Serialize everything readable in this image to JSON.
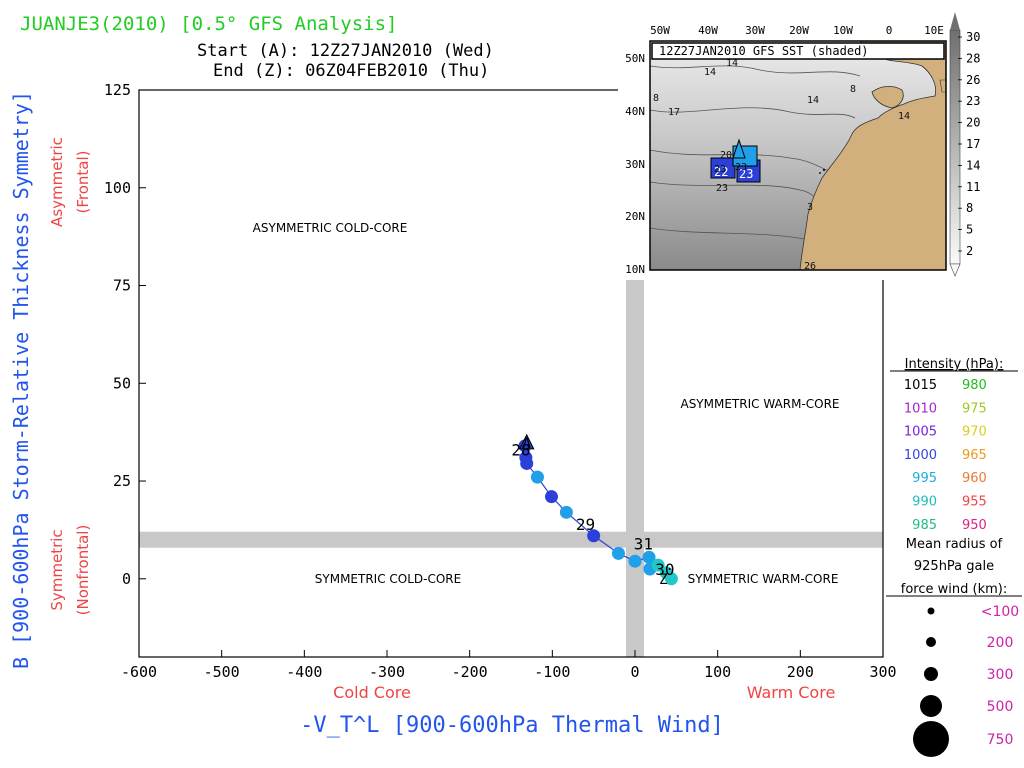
{
  "header": {
    "title": "JUANJE3(2010) [0.5° GFS Analysis]",
    "start_label": "Start (A): 12Z27JAN2010 (Wed)",
    "end_label": "End (Z): 06Z04FEB2010 (Thu)"
  },
  "colors": {
    "title_green": "#22cc22",
    "axis_blue": "#2255ee",
    "label_red": "#ee4444",
    "legend_magenta": "#cc22aa",
    "band_gray": "#c8c8c8",
    "land_tan": "#d2b07e"
  },
  "chart_data": {
    "type": "scatter",
    "title": "JUANJE3(2010) [0.5° GFS Analysis]",
    "xlabel": "-V_T^L [900-600hPa Thermal Wind]",
    "ylabel": "B [900-600hPa Storm-Relative Thickness Symmetry]",
    "xlim": [
      -600,
      300
    ],
    "ylim": [
      -20,
      125
    ],
    "xticks": [
      -600,
      -500,
      -400,
      -300,
      -200,
      -100,
      0,
      100,
      200,
      300
    ],
    "yticks": [
      0,
      25,
      50,
      75,
      100,
      125
    ],
    "x_sub_labels": {
      "left": "Cold Core",
      "right": "Warm Core"
    },
    "y_sub_labels": {
      "upper": [
        "Asymmetric",
        "(Frontal)"
      ],
      "lower": [
        "Symmetric",
        "(Nonfrontal)"
      ]
    },
    "quadrants": {
      "upper_left": "ASYMMETRIC COLD-CORE",
      "upper_right": "ASYMMETRIC WARM-CORE",
      "lower_left": "SYMMETRIC COLD-CORE",
      "lower_right": "SYMMETRIC WARM-CORE"
    },
    "vertical_band_x": 0,
    "horizontal_band_y": 10,
    "grid": false,
    "series": [
      {
        "points": [
          {
            "x": -133,
            "y": 34,
            "color": "#2a40d8"
          },
          {
            "x": -132,
            "y": 31,
            "color": "#2a40d8"
          },
          {
            "x": -131,
            "y": 29.5,
            "color": "#2a40d8"
          },
          {
            "x": -118,
            "y": 26,
            "color": "#1fa0e8"
          },
          {
            "x": -101,
            "y": 21,
            "color": "#2a40d8"
          },
          {
            "x": -83,
            "y": 17,
            "color": "#1fa0e8"
          },
          {
            "x": -50,
            "y": 11,
            "color": "#2a40d8"
          },
          {
            "x": -20,
            "y": 6.5,
            "color": "#1fa0e8"
          },
          {
            "x": 0,
            "y": 4.5,
            "color": "#1fa0e8"
          },
          {
            "x": 17,
            "y": 5.5,
            "color": "#1fa0e8"
          },
          {
            "x": 18,
            "y": 2.5,
            "color": "#1fa0e8"
          },
          {
            "x": 28,
            "y": 3.5,
            "color": "#22c8c8"
          },
          {
            "x": 38,
            "y": 1.5,
            "color": "#22c8c8"
          },
          {
            "x": 44,
            "y": 0,
            "color": "#22c8c8"
          }
        ]
      }
    ],
    "annotations": [
      {
        "text": "A",
        "x": -131,
        "y": 34
      },
      {
        "text": "Z",
        "x": 44,
        "y": 0
      },
      {
        "text": "28",
        "x": -133,
        "y": 31
      },
      {
        "text": "29",
        "x": -55,
        "y": 12
      },
      {
        "text": "31",
        "x": 15,
        "y": 7
      },
      {
        "text": "30",
        "x": 41,
        "y": 0.5
      }
    ]
  },
  "inset_map": {
    "title": "12Z27JAN2010 GFS SST (shaded)",
    "lon_labels": [
      "50W",
      "40W",
      "30W",
      "20W",
      "10W",
      "0",
      "10E"
    ],
    "lat_labels": [
      "50N",
      "40N",
      "30N",
      "20N",
      "10N"
    ],
    "contour_labels": [
      "14",
      "14",
      "8",
      "17",
      "14",
      "8",
      "14",
      "20",
      "23",
      "23",
      "23",
      "3",
      "26"
    ],
    "colorbar_values": [
      "30",
      "28",
      "26",
      "23",
      "20",
      "17",
      "14",
      "11",
      "8",
      "5",
      "2"
    ]
  },
  "intensity_legend": {
    "title": "Intensity (hPa):",
    "rows": [
      [
        {
          "text": "1015",
          "color": "#000000"
        },
        {
          "text": "980",
          "color": "#22bb22"
        }
      ],
      [
        {
          "text": "1010",
          "color": "#aa22cc"
        },
        {
          "text": "975",
          "color": "#99cc22"
        }
      ],
      [
        {
          "text": "1005",
          "color": "#7722dd"
        },
        {
          "text": "970",
          "color": "#ddcc22"
        }
      ],
      [
        {
          "text": "1000",
          "color": "#3344dd"
        },
        {
          "text": "965",
          "color": "#ee9922"
        }
      ],
      [
        {
          "text": "995",
          "color": "#22aadd"
        },
        {
          "text": "960",
          "color": "#ee7733"
        }
      ],
      [
        {
          "text": "990",
          "color": "#22bbbb"
        },
        {
          "text": "955",
          "color": "#ee4444"
        }
      ],
      [
        {
          "text": "985",
          "color": "#22bb88"
        },
        {
          "text": "950",
          "color": "#dd2288"
        }
      ]
    ]
  },
  "radius_legend": {
    "title_lines": [
      "Mean radius of",
      "925hPa gale",
      "force wind (km):"
    ],
    "items": [
      "<100",
      "200",
      "300",
      "500",
      "750"
    ]
  }
}
